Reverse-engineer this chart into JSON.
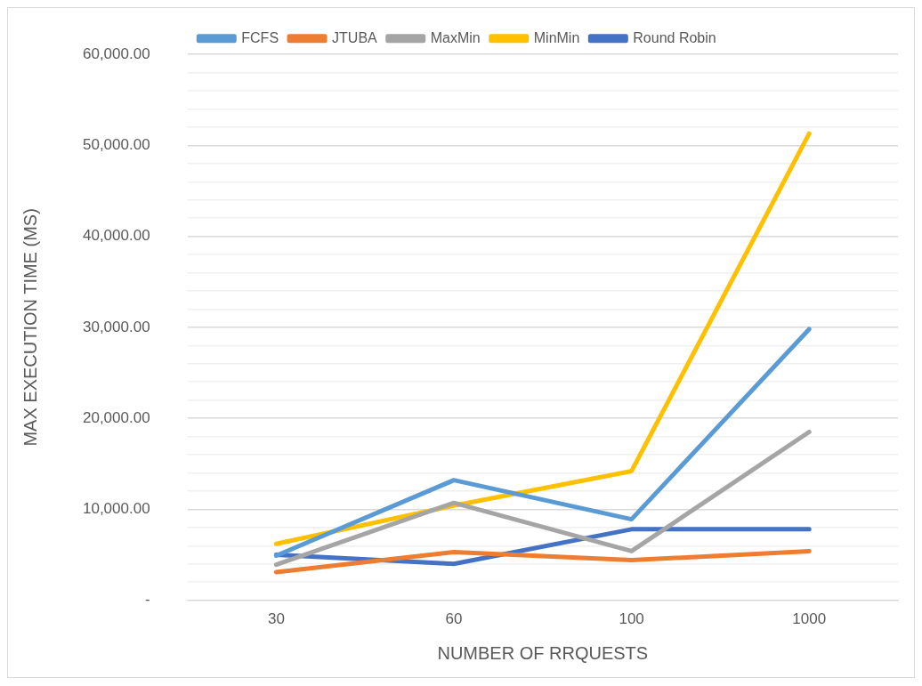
{
  "chart_data": {
    "type": "line",
    "xlabel": "NUMBER OF RRQUESTS",
    "ylabel": "MAX EXECUTION TIME (MS)",
    "categories": [
      "30",
      "60",
      "100",
      "1000"
    ],
    "series": [
      {
        "name": "FCFS",
        "color": "#5b9bd5",
        "values": [
          4900,
          13200,
          8900,
          29800
        ]
      },
      {
        "name": "JTUBA",
        "color": "#ed7d31",
        "values": [
          3100,
          5300,
          4400,
          5400
        ]
      },
      {
        "name": "MaxMin",
        "color": "#a5a5a5",
        "values": [
          3900,
          10700,
          5400,
          18500
        ]
      },
      {
        "name": "MinMin",
        "color": "#ffc000",
        "values": [
          6200,
          10400,
          14200,
          51300
        ]
      },
      {
        "name": "Round Robin",
        "color": "#4472c4",
        "values": [
          5000,
          4000,
          7800,
          7800
        ]
      }
    ],
    "ylim": [
      0,
      60000
    ],
    "yticks": [
      {
        "value": 0,
        "label": "-"
      },
      {
        "value": 2000,
        "label": null
      },
      {
        "value": 4000,
        "label": null
      },
      {
        "value": 6000,
        "label": null
      },
      {
        "value": 8000,
        "label": null
      },
      {
        "value": 10000,
        "label": "10,000.00"
      },
      {
        "value": 12000,
        "label": null
      },
      {
        "value": 14000,
        "label": null
      },
      {
        "value": 16000,
        "label": null
      },
      {
        "value": 18000,
        "label": null
      },
      {
        "value": 20000,
        "label": "20,000.00"
      },
      {
        "value": 22000,
        "label": null
      },
      {
        "value": 24000,
        "label": null
      },
      {
        "value": 26000,
        "label": null
      },
      {
        "value": 28000,
        "label": null
      },
      {
        "value": 30000,
        "label": "30,000.00"
      },
      {
        "value": 32000,
        "label": null
      },
      {
        "value": 34000,
        "label": null
      },
      {
        "value": 36000,
        "label": null
      },
      {
        "value": 38000,
        "label": null
      },
      {
        "value": 40000,
        "label": "40,000.00"
      },
      {
        "value": 42000,
        "label": null
      },
      {
        "value": 44000,
        "label": null
      },
      {
        "value": 46000,
        "label": null
      },
      {
        "value": 48000,
        "label": null
      },
      {
        "value": 50000,
        "label": "50,000.00"
      },
      {
        "value": 52000,
        "label": null
      },
      {
        "value": 54000,
        "label": null
      },
      {
        "value": 56000,
        "label": null
      },
      {
        "value": 58000,
        "label": null
      },
      {
        "value": 60000,
        "label": "60,000.00"
      }
    ],
    "grid": "y",
    "legend": "top",
    "marker": "none",
    "line_style": "solid"
  }
}
